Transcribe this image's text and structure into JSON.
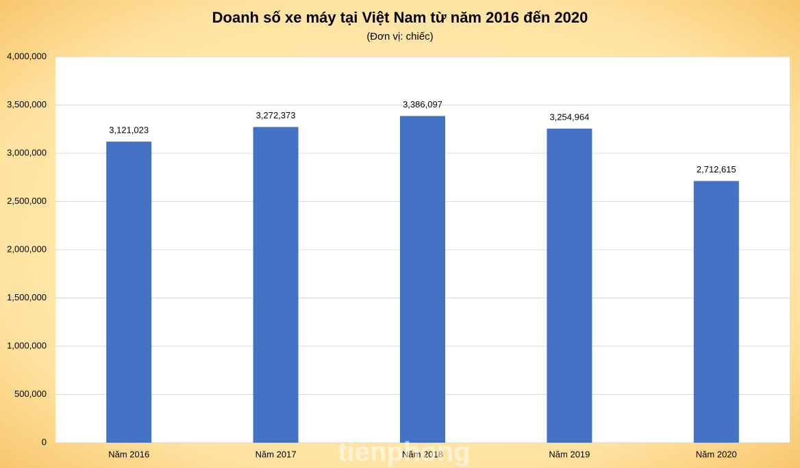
{
  "chart_data": {
    "type": "bar",
    "title": "Doanh số xe máy tại Việt Nam từ năm 2016 đến 2020",
    "subtitle": "(Đơn vị: chiếc)",
    "categories": [
      "Năm 2016",
      "Năm 2017",
      "Năm 2018",
      "Năm 2019",
      "Năm 2020"
    ],
    "values": [
      3121023,
      3272373,
      3386097,
      3254964,
      2712615
    ],
    "value_labels": [
      "3,121,023",
      "3,272,373",
      "3,386,097",
      "3,254,964",
      "2,712,615"
    ],
    "color": "#4472c4",
    "ylim": [
      0,
      4000000
    ],
    "yticks": [
      0,
      {
        "value": 500000,
        "label": "500,000"
      },
      {
        "value": 1000000,
        "label": "1,000,000"
      },
      {
        "value": 1500000,
        "label": "1,500,000"
      },
      {
        "value": 2000000,
        "label": "2,000,000"
      },
      {
        "value": 2500000,
        "label": "2,500,000"
      },
      {
        "value": 3000000,
        "label": "3,000,000"
      },
      {
        "value": 3500000,
        "label": "3,500,000"
      },
      {
        "value": 4000000,
        "label": "4,000,000"
      }
    ],
    "grid": true,
    "watermark": "tienphong"
  }
}
